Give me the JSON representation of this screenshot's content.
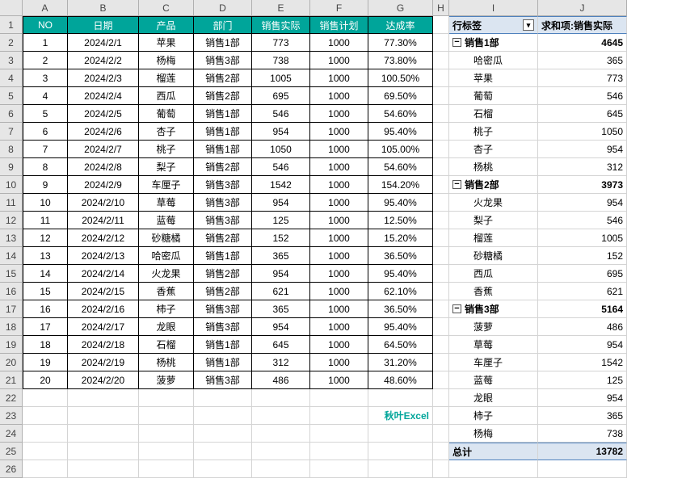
{
  "columns": [
    "A",
    "B",
    "C",
    "D",
    "E",
    "F",
    "G",
    "H",
    "I",
    "J"
  ],
  "rowCount": 26,
  "mainTable": {
    "headers": [
      "NO",
      "日期",
      "产品",
      "部门",
      "销售实际",
      "销售计划",
      "达成率"
    ],
    "header_bg": "#00a59a",
    "header_fg": "#ffffff",
    "rows": [
      [
        "1",
        "2024/2/1",
        "苹果",
        "销售1部",
        "773",
        "1000",
        "77.30%"
      ],
      [
        "2",
        "2024/2/2",
        "杨梅",
        "销售3部",
        "738",
        "1000",
        "73.80%"
      ],
      [
        "3",
        "2024/2/3",
        "榴莲",
        "销售2部",
        "1005",
        "1000",
        "100.50%"
      ],
      [
        "4",
        "2024/2/4",
        "西瓜",
        "销售2部",
        "695",
        "1000",
        "69.50%"
      ],
      [
        "5",
        "2024/2/5",
        "葡萄",
        "销售1部",
        "546",
        "1000",
        "54.60%"
      ],
      [
        "6",
        "2024/2/6",
        "杏子",
        "销售1部",
        "954",
        "1000",
        "95.40%"
      ],
      [
        "7",
        "2024/2/7",
        "桃子",
        "销售1部",
        "1050",
        "1000",
        "105.00%"
      ],
      [
        "8",
        "2024/2/8",
        "梨子",
        "销售2部",
        "546",
        "1000",
        "54.60%"
      ],
      [
        "9",
        "2024/2/9",
        "车厘子",
        "销售3部",
        "1542",
        "1000",
        "154.20%"
      ],
      [
        "10",
        "2024/2/10",
        "草莓",
        "销售3部",
        "954",
        "1000",
        "95.40%"
      ],
      [
        "11",
        "2024/2/11",
        "蓝莓",
        "销售3部",
        "125",
        "1000",
        "12.50%"
      ],
      [
        "12",
        "2024/2/12",
        "砂糖橘",
        "销售2部",
        "152",
        "1000",
        "15.20%"
      ],
      [
        "13",
        "2024/2/13",
        "哈密瓜",
        "销售1部",
        "365",
        "1000",
        "36.50%"
      ],
      [
        "14",
        "2024/2/14",
        "火龙果",
        "销售2部",
        "954",
        "1000",
        "95.40%"
      ],
      [
        "15",
        "2024/2/15",
        "香蕉",
        "销售2部",
        "621",
        "1000",
        "62.10%"
      ],
      [
        "16",
        "2024/2/16",
        "柿子",
        "销售3部",
        "365",
        "1000",
        "36.50%"
      ],
      [
        "17",
        "2024/2/17",
        "龙眼",
        "销售3部",
        "954",
        "1000",
        "95.40%"
      ],
      [
        "18",
        "2024/2/18",
        "石榴",
        "销售1部",
        "645",
        "1000",
        "64.50%"
      ],
      [
        "19",
        "2024/2/19",
        "杨桃",
        "销售1部",
        "312",
        "1000",
        "31.20%"
      ],
      [
        "20",
        "2024/2/20",
        "菠萝",
        "销售3部",
        "486",
        "1000",
        "48.60%"
      ]
    ]
  },
  "watermark": "秋叶Excel",
  "pivot": {
    "header_bg": "#dbe5f1",
    "header_border": "#4f81bd",
    "rowLabel": "行标签",
    "valueLabel": "求和项:销售实际",
    "groups": [
      {
        "name": "销售1部",
        "total": "4645",
        "items": [
          {
            "name": "哈密瓜",
            "val": "365"
          },
          {
            "name": "苹果",
            "val": "773"
          },
          {
            "name": "葡萄",
            "val": "546"
          },
          {
            "name": "石榴",
            "val": "645"
          },
          {
            "name": "桃子",
            "val": "1050"
          },
          {
            "name": "杏子",
            "val": "954"
          },
          {
            "name": "杨桃",
            "val": "312"
          }
        ]
      },
      {
        "name": "销售2部",
        "total": "3973",
        "items": [
          {
            "name": "火龙果",
            "val": "954"
          },
          {
            "name": "梨子",
            "val": "546"
          },
          {
            "name": "榴莲",
            "val": "1005"
          },
          {
            "name": "砂糖橘",
            "val": "152"
          },
          {
            "name": "西瓜",
            "val": "695"
          },
          {
            "name": "香蕉",
            "val": "621"
          }
        ]
      },
      {
        "name": "销售3部",
        "total": "5164",
        "items": [
          {
            "name": "菠萝",
            "val": "486"
          },
          {
            "name": "草莓",
            "val": "954"
          },
          {
            "name": "车厘子",
            "val": "1542"
          },
          {
            "name": "蓝莓",
            "val": "125"
          },
          {
            "name": "龙眼",
            "val": "954"
          },
          {
            "name": "柿子",
            "val": "365"
          },
          {
            "name": "杨梅",
            "val": "738"
          }
        ]
      }
    ],
    "grandLabel": "总计",
    "grandTotal": "13782"
  }
}
